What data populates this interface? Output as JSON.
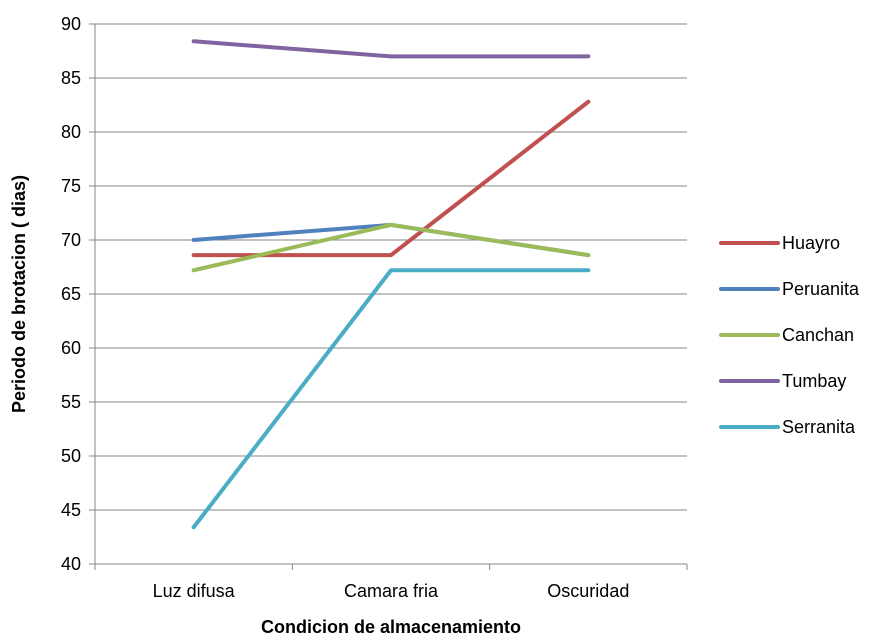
{
  "chart_data": {
    "type": "line",
    "xlabel": "Condicion de almacenamiento",
    "ylabel": "Periodo de brotacion ( dias)",
    "categories": [
      "Luz difusa",
      "Camara fria",
      "Oscuridad"
    ],
    "ylim": [
      40,
      90
    ],
    "ytick_step": 5,
    "grid": true,
    "legend_position": "right",
    "series": [
      {
        "name": "Huayro",
        "color": "#c0504d",
        "values": [
          68.6,
          68.6,
          82.8
        ]
      },
      {
        "name": "Peruanita",
        "color": "#4f81bd",
        "values": [
          70.0,
          71.4,
          68.6
        ]
      },
      {
        "name": "Canchan",
        "color": "#9bbb59",
        "values": [
          67.2,
          71.4,
          68.6
        ]
      },
      {
        "name": "Tumbay",
        "color": "#8064a2",
        "values": [
          88.4,
          87.0,
          87.0
        ]
      },
      {
        "name": "Serranita",
        "color": "#4bacc6",
        "values": [
          43.4,
          67.2,
          67.2
        ]
      }
    ]
  }
}
